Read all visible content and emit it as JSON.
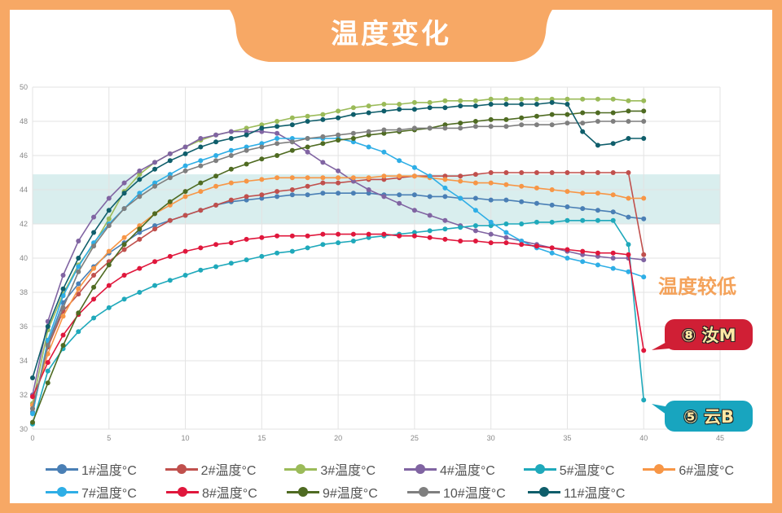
{
  "header": {
    "title": "温度变化"
  },
  "annotations": {
    "low_temp_note": "温度较低",
    "badge_8": "⑧ 汝M",
    "badge_5": "⑤ 云B"
  },
  "colors": {
    "frame": "#f7a865",
    "band": "#d9eeee",
    "badge_8": "#d01f35",
    "badge_5": "#18a5bf"
  },
  "chart_data": {
    "type": "line",
    "title": "温度变化",
    "xlabel": "",
    "ylabel": "",
    "xlim": [
      0,
      45
    ],
    "ylim": [
      30,
      50
    ],
    "x_ticks": [
      0,
      5,
      10,
      15,
      20,
      25,
      30,
      35,
      40,
      45
    ],
    "y_ticks": [
      30,
      32,
      34,
      36,
      38,
      40,
      42,
      44,
      46,
      48,
      50
    ],
    "grid": true,
    "legend_position": "bottom",
    "highlight_band": [
      42,
      44.9
    ],
    "x": [
      0,
      1,
      2,
      3,
      4,
      5,
      6,
      7,
      8,
      9,
      10,
      11,
      12,
      13,
      14,
      15,
      16,
      17,
      18,
      19,
      20,
      21,
      22,
      23,
      24,
      25,
      26,
      27,
      28,
      29,
      30,
      31,
      32,
      33,
      34,
      35,
      36,
      37,
      38,
      39,
      40
    ],
    "series": [
      {
        "name": "1#温度°C",
        "color": "#4a7fb5",
        "values": [
          31.0,
          35.0,
          37.4,
          38.5,
          39.5,
          40.3,
          40.9,
          41.5,
          41.9,
          42.2,
          42.5,
          42.8,
          43.1,
          43.3,
          43.4,
          43.5,
          43.6,
          43.7,
          43.7,
          43.8,
          43.8,
          43.8,
          43.8,
          43.7,
          43.7,
          43.7,
          43.6,
          43.6,
          43.5,
          43.5,
          43.4,
          43.4,
          43.3,
          43.2,
          43.1,
          43.0,
          42.9,
          42.8,
          42.7,
          42.4,
          42.3
        ]
      },
      {
        "name": "2#温度°C",
        "color": "#c0504d",
        "values": [
          31.2,
          34.8,
          36.9,
          37.9,
          39.0,
          39.8,
          40.5,
          41.1,
          41.7,
          42.2,
          42.5,
          42.8,
          43.1,
          43.4,
          43.6,
          43.7,
          43.9,
          44.0,
          44.2,
          44.4,
          44.4,
          44.5,
          44.6,
          44.6,
          44.7,
          44.8,
          44.8,
          44.8,
          44.8,
          44.9,
          45.0,
          45.0,
          45.0,
          45.0,
          45.0,
          45.0,
          45.0,
          45.0,
          45.0,
          45.0,
          40.2
        ]
      },
      {
        "name": "3#温度°C",
        "color": "#9bbb59",
        "values": [
          31.5,
          35.8,
          37.9,
          39.6,
          40.8,
          42.3,
          43.9,
          44.9,
          45.6,
          46.1,
          46.5,
          46.9,
          47.2,
          47.4,
          47.6,
          47.8,
          48.0,
          48.2,
          48.3,
          48.4,
          48.6,
          48.8,
          48.9,
          49.0,
          49.0,
          49.1,
          49.1,
          49.2,
          49.2,
          49.2,
          49.3,
          49.3,
          49.3,
          49.3,
          49.3,
          49.3,
          49.3,
          49.3,
          49.3,
          49.2,
          49.2
        ]
      },
      {
        "name": "4#温度°C",
        "color": "#8064a2",
        "values": [
          32.0,
          36.3,
          39.0,
          41.0,
          42.4,
          43.5,
          44.4,
          45.1,
          45.6,
          46.1,
          46.5,
          47.0,
          47.2,
          47.4,
          47.4,
          47.4,
          47.3,
          46.8,
          46.2,
          45.6,
          45.1,
          44.5,
          44.0,
          43.6,
          43.2,
          42.8,
          42.5,
          42.2,
          41.9,
          41.6,
          41.4,
          41.2,
          41.0,
          40.8,
          40.6,
          40.4,
          40.2,
          40.1,
          40.0,
          40.0,
          39.9
        ]
      },
      {
        "name": "5#温度°C",
        "color": "#1fa9bb",
        "values": [
          30.3,
          33.4,
          34.7,
          35.7,
          36.5,
          37.1,
          37.6,
          38.0,
          38.4,
          38.7,
          39.0,
          39.3,
          39.5,
          39.7,
          39.9,
          40.1,
          40.3,
          40.4,
          40.6,
          40.8,
          40.9,
          41.0,
          41.2,
          41.3,
          41.4,
          41.5,
          41.6,
          41.7,
          41.8,
          41.9,
          41.9,
          42.0,
          42.0,
          42.1,
          42.1,
          42.2,
          42.2,
          42.2,
          42.2,
          40.8,
          31.7
        ]
      },
      {
        "name": "6#温度°C",
        "color": "#f79646",
        "values": [
          31.4,
          34.4,
          36.6,
          38.2,
          39.4,
          40.4,
          41.2,
          41.9,
          42.6,
          43.1,
          43.6,
          43.9,
          44.2,
          44.4,
          44.5,
          44.6,
          44.7,
          44.7,
          44.7,
          44.7,
          44.7,
          44.7,
          44.7,
          44.8,
          44.8,
          44.8,
          44.7,
          44.6,
          44.5,
          44.4,
          44.4,
          44.3,
          44.2,
          44.1,
          44.0,
          43.9,
          43.8,
          43.8,
          43.7,
          43.5,
          43.5
        ]
      },
      {
        "name": "7#温度°C",
        "color": "#2eaee6",
        "values": [
          30.9,
          35.2,
          37.8,
          39.5,
          40.9,
          42.0,
          42.9,
          43.8,
          44.4,
          44.9,
          45.4,
          45.7,
          46.0,
          46.3,
          46.5,
          46.7,
          47.0,
          47.0,
          47.0,
          47.0,
          47.0,
          46.8,
          46.5,
          46.2,
          45.7,
          45.3,
          44.8,
          44.1,
          43.5,
          42.8,
          42.1,
          41.5,
          41.0,
          40.6,
          40.3,
          40.0,
          39.8,
          39.6,
          39.4,
          39.2,
          38.9
        ]
      },
      {
        "name": "8#温度°C",
        "color": "#e0173c",
        "values": [
          31.9,
          33.9,
          35.5,
          36.7,
          37.6,
          38.4,
          39.0,
          39.4,
          39.8,
          40.1,
          40.4,
          40.6,
          40.8,
          40.9,
          41.1,
          41.2,
          41.3,
          41.3,
          41.3,
          41.4,
          41.4,
          41.4,
          41.4,
          41.4,
          41.3,
          41.3,
          41.2,
          41.1,
          41.0,
          41.0,
          40.9,
          40.9,
          40.8,
          40.7,
          40.6,
          40.5,
          40.4,
          40.3,
          40.3,
          40.2,
          34.6
        ]
      },
      {
        "name": "9#温度°C",
        "color": "#4f6b22",
        "values": [
          30.4,
          32.7,
          34.9,
          36.8,
          38.3,
          39.6,
          40.8,
          41.7,
          42.6,
          43.3,
          43.9,
          44.4,
          44.8,
          45.2,
          45.5,
          45.8,
          46.0,
          46.3,
          46.5,
          46.7,
          46.9,
          47.0,
          47.2,
          47.3,
          47.4,
          47.5,
          47.6,
          47.8,
          47.9,
          48.0,
          48.1,
          48.1,
          48.2,
          48.3,
          48.4,
          48.4,
          48.5,
          48.5,
          48.5,
          48.6,
          48.6
        ]
      },
      {
        "name": "10#温度°C",
        "color": "#7f7f7f",
        "values": [
          31.2,
          34.9,
          37.1,
          39.2,
          40.7,
          41.9,
          42.9,
          43.6,
          44.2,
          44.7,
          45.1,
          45.4,
          45.7,
          46.0,
          46.3,
          46.5,
          46.7,
          46.8,
          47.0,
          47.1,
          47.2,
          47.3,
          47.4,
          47.5,
          47.5,
          47.6,
          47.6,
          47.6,
          47.6,
          47.7,
          47.7,
          47.7,
          47.8,
          47.8,
          47.8,
          47.9,
          47.9,
          48.0,
          48.0,
          48.0,
          48.0
        ]
      },
      {
        "name": "11#温度°C",
        "color": "#0f5e6b",
        "values": [
          33.0,
          36.0,
          38.2,
          40.0,
          41.5,
          42.8,
          43.8,
          44.6,
          45.2,
          45.7,
          46.1,
          46.5,
          46.8,
          47.0,
          47.2,
          47.6,
          47.7,
          47.8,
          48.0,
          48.1,
          48.2,
          48.4,
          48.5,
          48.6,
          48.7,
          48.7,
          48.8,
          48.8,
          48.9,
          48.9,
          49.0,
          49.0,
          49.0,
          49.0,
          49.1,
          49.0,
          47.4,
          46.6,
          46.7,
          47.0,
          47.0
        ]
      }
    ]
  }
}
